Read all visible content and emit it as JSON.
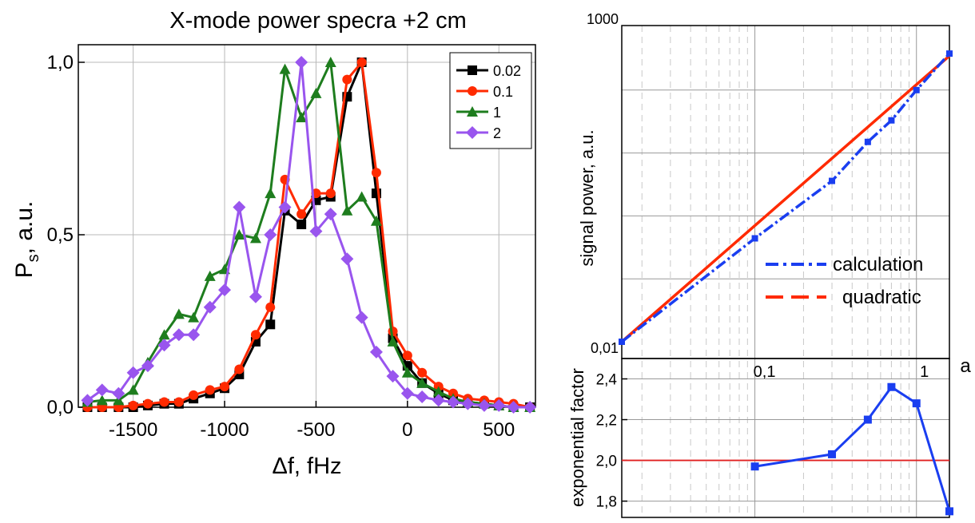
{
  "chart_data": [
    {
      "type": "line",
      "title": "X-mode power specra +2 cm",
      "xlabel": "Δf, fHz",
      "ylabel_main": "P",
      "ylabel_sub": "s",
      "ylabel_rest": ", a.u.",
      "xlim": [
        -1800,
        700
      ],
      "ylim": [
        0,
        1.0
      ],
      "xticks": [
        -1500,
        -1000,
        -500,
        0,
        500
      ],
      "xtick_labels": [
        "-1500",
        "-1000",
        "-500",
        "0",
        "500"
      ],
      "yticks": [
        0,
        0.5,
        1.0
      ],
      "ytick_labels": [
        "0,0",
        "0,5",
        "1,0"
      ],
      "grid": true,
      "legend_position": "top-right",
      "series": [
        {
          "name": "0.02",
          "color": "#000000",
          "marker": "square",
          "x": [
            -1750,
            -1670,
            -1580,
            -1500,
            -1420,
            -1330,
            -1250,
            -1170,
            -1080,
            -1000,
            -920,
            -830,
            -750,
            -670,
            -580,
            -500,
            -420,
            -330,
            -250,
            -170,
            -80,
            0,
            80,
            170,
            250,
            330,
            420,
            500,
            580,
            670
          ],
          "y": [
            0.0,
            0.0,
            0.0,
            0.0,
            0.005,
            0.01,
            0.01,
            0.025,
            0.04,
            0.055,
            0.095,
            0.19,
            0.24,
            0.57,
            0.53,
            0.6,
            0.61,
            0.9,
            1.0,
            0.62,
            0.2,
            0.12,
            0.07,
            0.04,
            0.02,
            0.015,
            0.01,
            0.005,
            0.0,
            0.0
          ]
        },
        {
          "name": "0.1",
          "color": "#ff2a00",
          "marker": "circle",
          "x": [
            -1750,
            -1670,
            -1580,
            -1500,
            -1420,
            -1330,
            -1250,
            -1170,
            -1080,
            -1000,
            -920,
            -830,
            -750,
            -670,
            -580,
            -500,
            -420,
            -330,
            -250,
            -170,
            -80,
            0,
            80,
            170,
            250,
            330,
            420,
            500,
            580,
            670
          ],
          "y": [
            0.0,
            0.0,
            0.0,
            0.005,
            0.01,
            0.015,
            0.015,
            0.035,
            0.05,
            0.06,
            0.11,
            0.21,
            0.29,
            0.66,
            0.56,
            0.62,
            0.62,
            0.95,
            1.0,
            0.68,
            0.22,
            0.15,
            0.1,
            0.06,
            0.04,
            0.025,
            0.02,
            0.015,
            0.01,
            0.0
          ]
        },
        {
          "name": "1",
          "color": "#1e7d1e",
          "marker": "triangle",
          "x": [
            -1750,
            -1670,
            -1580,
            -1500,
            -1420,
            -1330,
            -1250,
            -1170,
            -1080,
            -1000,
            -920,
            -830,
            -750,
            -670,
            -580,
            -500,
            -420,
            -330,
            -250,
            -170,
            -80,
            0,
            80,
            170,
            250,
            330,
            420,
            500,
            580,
            670
          ],
          "y": [
            0.015,
            0.02,
            0.02,
            0.05,
            0.13,
            0.21,
            0.27,
            0.26,
            0.38,
            0.4,
            0.5,
            0.49,
            0.62,
            0.98,
            0.84,
            0.91,
            1.0,
            0.57,
            0.61,
            0.54,
            0.19,
            0.1,
            0.07,
            0.045,
            0.025,
            0.015,
            0.01,
            0.005,
            0.0,
            0.0
          ]
        },
        {
          "name": "2",
          "color": "#9955ee",
          "marker": "diamond",
          "x": [
            -1750,
            -1670,
            -1580,
            -1500,
            -1420,
            -1330,
            -1250,
            -1170,
            -1080,
            -1000,
            -920,
            -830,
            -750,
            -670,
            -580,
            -500,
            -420,
            -330,
            -250,
            -170,
            -80,
            0,
            80,
            170,
            250,
            330,
            420,
            500,
            580,
            670
          ],
          "y": [
            0.02,
            0.05,
            0.04,
            0.1,
            0.12,
            0.18,
            0.21,
            0.21,
            0.29,
            0.34,
            0.58,
            0.32,
            0.5,
            0.58,
            1.0,
            0.51,
            0.56,
            0.43,
            0.26,
            0.16,
            0.09,
            0.04,
            0.03,
            0.02,
            0.015,
            0.01,
            0.005,
            0.005,
            0.0,
            0.0
          ]
        }
      ]
    },
    {
      "type": "line",
      "ylabel": "signal power, a.u.",
      "xlabel": "a",
      "xscale": "log",
      "yscale": "log",
      "xlim": [
        0.015,
        1.6
      ],
      "ylim": [
        0.01,
        1000
      ],
      "xtick_labels": [
        "0,1",
        "1"
      ],
      "xticks": [
        0.1,
        1
      ],
      "ytick_labels": [
        "0,01",
        "1000"
      ],
      "yticks": [
        0.01,
        1000
      ],
      "grid": true,
      "legend_position": "center-right",
      "series": [
        {
          "name": "calculation",
          "color": "#1a3ef0",
          "style": "dash-dot",
          "marker": "square",
          "x": [
            0.015,
            0.1,
            0.3,
            0.5,
            0.7,
            1.0,
            1.6
          ],
          "y": [
            0.01,
            0.44,
            3.6,
            15,
            33,
            100,
            380
          ]
        },
        {
          "name": "quadratic",
          "color": "#ff2a00",
          "style": "dashed",
          "x": [
            0.015,
            1.6
          ],
          "y": [
            0.01,
            350
          ]
        }
      ]
    },
    {
      "type": "line",
      "ylabel": "exponential factor",
      "xscale": "log",
      "xlim": [
        0.015,
        1.6
      ],
      "ylim": [
        1.72,
        2.5
      ],
      "yticks": [
        1.8,
        2.0,
        2.2,
        2.4
      ],
      "ytick_labels": [
        "1,8",
        "2,0",
        "2,2",
        "2,4"
      ],
      "reference_line": 2.0,
      "reference_color": "#e02020",
      "series": [
        {
          "color": "#1a3ef0",
          "marker": "square",
          "x": [
            0.1,
            0.3,
            0.5,
            0.7,
            1.0,
            1.6
          ],
          "y": [
            1.97,
            2.03,
            2.2,
            2.36,
            2.28,
            1.75
          ]
        }
      ]
    }
  ]
}
